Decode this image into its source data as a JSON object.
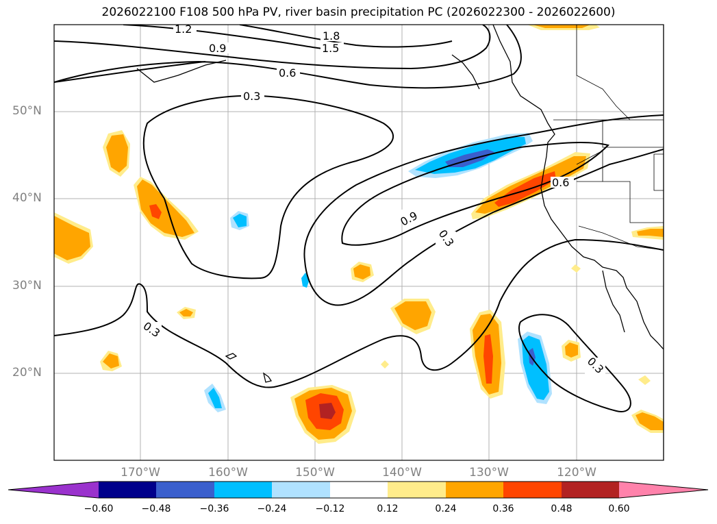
{
  "title": "2026022100 F108 500 hPa PV, river basin precipitation PC (2026022300 - 2026022600)",
  "map": {
    "lat_labels": [
      "50°N",
      "40°N",
      "30°N",
      "20°N"
    ],
    "lon_labels": [
      "170°W",
      "160°W",
      "150°W",
      "140°W",
      "130°W",
      "120°W"
    ],
    "contour_labels": [
      "1.2",
      "0.9",
      "1.8",
      "1.5",
      "0.6",
      "0.3",
      "0.9",
      "0.3",
      "0.6",
      "0.3",
      "0.3"
    ]
  },
  "colorbar": {
    "ticks": [
      "−0.60",
      "−0.48",
      "−0.36",
      "−0.24",
      "−0.12",
      "0.12",
      "0.24",
      "0.36",
      "0.48",
      "0.60"
    ],
    "colors": [
      "#9a32cd",
      "#00008b",
      "#3a5fcd",
      "#00bfff",
      "#b0e2ff",
      "#ffffff",
      "#ffec8b",
      "#ffa500",
      "#ff4500",
      "#b22222",
      "#ff82ab"
    ]
  }
}
